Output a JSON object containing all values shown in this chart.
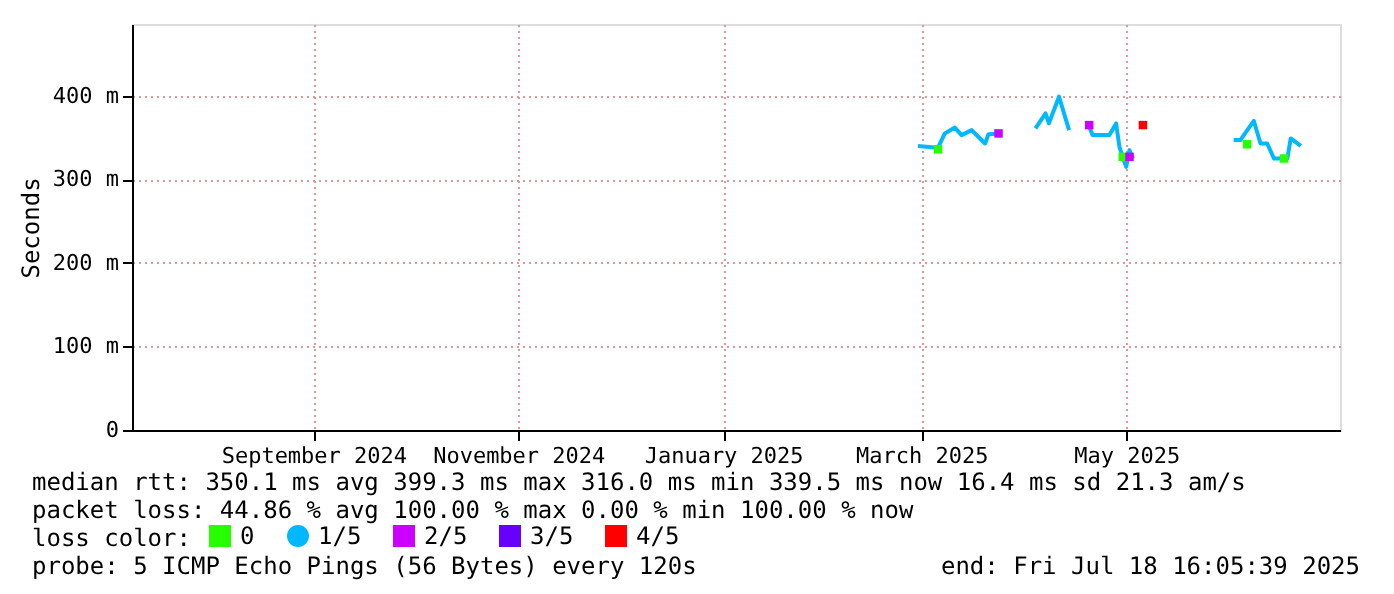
{
  "chart_data": {
    "type": "line",
    "ylabel": "Seconds",
    "ylim": [
      0,
      486
    ],
    "yticks": [
      0,
      {
        "value": 100,
        "label": "100 m"
      },
      {
        "value": 200,
        "label": "200 m"
      },
      {
        "value": 300,
        "label": "300 m"
      },
      {
        "value": 400,
        "label": "400 m"
      }
    ],
    "xlim": [
      "2024-07-24",
      "2025-07-18T16:05"
    ],
    "xticks": [
      {
        "value": "2024-09-16",
        "label": "September 2024"
      },
      {
        "value": "2024-11-16",
        "label": "November 2024"
      },
      {
        "value": "2025-01-16",
        "label": "January 2025"
      },
      {
        "value": "2025-03-16",
        "label": "March 2025"
      },
      {
        "value": "2025-05-16",
        "label": "May 2025"
      }
    ],
    "grid": true,
    "legend": "bottom",
    "legend_title": "loss color:",
    "line_style": "solid",
    "series": [
      {
        "name": "0",
        "type": "scatter",
        "marker": "square",
        "color": "#26ff00",
        "x": [
          "2025-03-21",
          "2025-05-15",
          "2025-06-21",
          "2025-07-02"
        ],
        "values": [
          336,
          327,
          342,
          325
        ]
      },
      {
        "name": "1/5",
        "color": "#00b8ff",
        "x": [
          "2025-03-15",
          "2025-03-21",
          "2025-03-23",
          "2025-03-26",
          "2025-03-28",
          "2025-03-31",
          "2025-04-04",
          "2025-04-05",
          "2025-04-08",
          "2025-04-14",
          "2025-04-19",
          "2025-04-22",
          "2025-04-23",
          "2025-04-26",
          "2025-04-29",
          "2025-05-02",
          "2025-05-05",
          "2025-05-06",
          "2025-05-11",
          "2025-05-13",
          "2025-05-14",
          "2025-05-16",
          "2025-05-17",
          "2025-05-18",
          "2025-06-01",
          "2025-06-17",
          "2025-06-19",
          "2025-06-23",
          "2025-06-25",
          "2025-06-27",
          "2025-06-29",
          "2025-07-03",
          "2025-07-04",
          "2025-07-07"
        ],
        "values": [
          340,
          338,
          355,
          362,
          353,
          359,
          343,
          354,
          355,
          null,
          361,
          379,
          367,
          399,
          359,
          null,
          363,
          353,
          353,
          367,
          339,
          315,
          335,
          325,
          null,
          347,
          347,
          370,
          343,
          343,
          325,
          325,
          349,
          340
        ]
      },
      {
        "name": "2/5",
        "type": "scatter",
        "marker": "square",
        "color": "#cc00ff",
        "x": [
          "2025-04-08",
          "2025-05-05",
          "2025-05-17"
        ],
        "values": [
          355,
          365,
          327
        ]
      },
      {
        "name": "3/5",
        "type": "scatter",
        "marker": "square",
        "color": "#6600ff"
      },
      {
        "name": "4/5",
        "type": "scatter",
        "marker": "square",
        "color": "#ff0000",
        "x": [
          "2025-05-21"
        ],
        "values": [
          365
        ]
      }
    ],
    "annotations": [
      "median rtt:  350.1 ms avg  399.3 ms max  316.0 ms min  339.5 ms now  16.4 ms sd  21.3   am/s",
      "packet loss: 44.86 % avg  100.00 % max  0.00 % min  100.00 % now",
      "probe:       5 ICMP Echo Pings (56 Bytes) every 120s",
      "end: Fri Jul 18 16:05:39 2025"
    ]
  }
}
